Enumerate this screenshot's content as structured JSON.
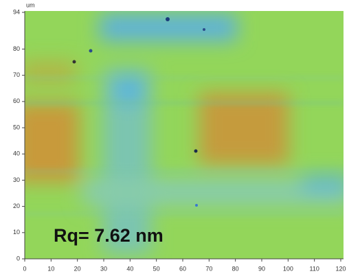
{
  "image": {
    "unit": "um",
    "annotation": "Rq= 7.62 nm",
    "x_ticks": [
      0,
      10,
      20,
      30,
      40,
      50,
      60,
      70,
      80,
      90,
      100,
      110,
      120
    ],
    "y_ticks": [
      0,
      10,
      20,
      30,
      40,
      50,
      60,
      70,
      80,
      94
    ]
  }
}
